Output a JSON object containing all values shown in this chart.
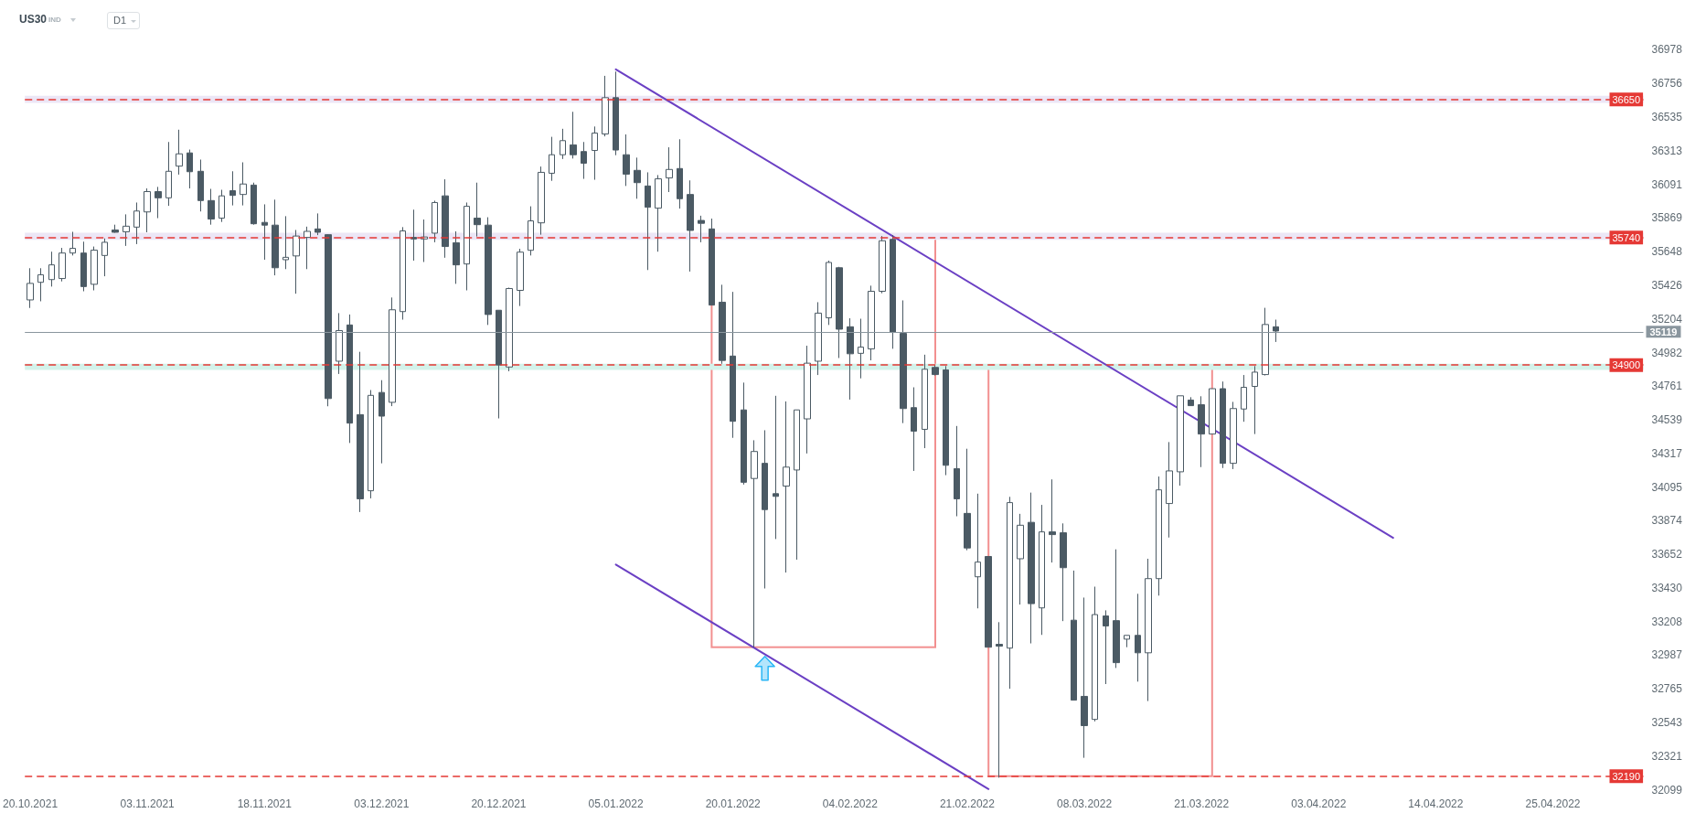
{
  "chart_data": {
    "type": "candlestick",
    "title": "US30",
    "subtitle": "IND",
    "annotations": [
      "D1"
    ],
    "categories": [
      "20.10.2021",
      null,
      null,
      null,
      null,
      null,
      null,
      null,
      null,
      null,
      null,
      "03.11.2021",
      null,
      null,
      null,
      null,
      null,
      null,
      null,
      null,
      null,
      null,
      "18.11.2021",
      null,
      null,
      null,
      null,
      null,
      null,
      null,
      null,
      null,
      null,
      "03.12.2021",
      null,
      null,
      null,
      null,
      null,
      null,
      null,
      null,
      null,
      null,
      "20.12.2021",
      null,
      null,
      null,
      null,
      null,
      null,
      null,
      null,
      null,
      null,
      "05.01.2022",
      null,
      null,
      null,
      null,
      null,
      null,
      null,
      null,
      null,
      null,
      "20.01.2022",
      null,
      null,
      null,
      null,
      null,
      null,
      null,
      null,
      null,
      null,
      "04.02.2022",
      null,
      null,
      null,
      null,
      null,
      null,
      null,
      null,
      null,
      null,
      "21.02.2022",
      null,
      null,
      null,
      null,
      null,
      null,
      null,
      null,
      null,
      null,
      "08.03.2022",
      null,
      null,
      null,
      null,
      null,
      null,
      null,
      null,
      null,
      null,
      "21.03.2022",
      null,
      null,
      null,
      null,
      null,
      null,
      null,
      null,
      null,
      null,
      "03.04.2022",
      null,
      null,
      null,
      null,
      null,
      null,
      null,
      null,
      null,
      null,
      "14.04.2022",
      null,
      null,
      null,
      null,
      null,
      null,
      null,
      null,
      null,
      null,
      "25.04.2022",
      null,
      null,
      null,
      null,
      null,
      null,
      null,
      null
    ],
    "ohlc": [
      [
        35329,
        35538,
        35276,
        35438
      ],
      [
        35445,
        35538,
        35320,
        35495
      ],
      [
        35463,
        35647,
        35417,
        35560
      ],
      [
        35470,
        35672,
        35451,
        35638
      ],
      [
        35638,
        35778,
        35622,
        35669
      ],
      [
        35638,
        35713,
        35386,
        35417
      ],
      [
        35432,
        35681,
        35392,
        35657
      ],
      [
        35622,
        35734,
        35485,
        35709
      ],
      [
        35790,
        35825,
        35772,
        35775
      ],
      [
        35778,
        35893,
        35685,
        35815
      ],
      [
        35809,
        35971,
        35697,
        35915
      ],
      [
        35909,
        36064,
        35775,
        36043
      ],
      [
        36043,
        36074,
        35868,
        36002
      ],
      [
        36002,
        36370,
        35949,
        36177
      ],
      [
        36211,
        36451,
        36155,
        36292
      ],
      [
        36298,
        36320,
        36064,
        36174
      ],
      [
        36177,
        36254,
        35912,
        35984
      ],
      [
        35984,
        36061,
        35825,
        35862
      ],
      [
        35868,
        36055,
        35843,
        36015
      ],
      [
        36049,
        36177,
        35952,
        36018
      ],
      [
        36024,
        36236,
        35952,
        36093
      ],
      [
        36086,
        36102,
        35825,
        35831
      ],
      [
        35840,
        35959,
        35594,
        35822
      ],
      [
        35822,
        35990,
        35491,
        35541
      ],
      [
        35594,
        35881,
        35532,
        35610
      ],
      [
        35619,
        35790,
        35370,
        35750
      ],
      [
        35741,
        35812,
        35532,
        35781
      ],
      [
        35797,
        35899,
        35756,
        35775
      ],
      [
        35759,
        35762,
        34628,
        34679
      ],
      [
        34925,
        35242,
        34841,
        35127
      ],
      [
        35164,
        35233,
        34386,
        34517
      ],
      [
        34573,
        34987,
        33931,
        34018
      ],
      [
        34071,
        34735,
        34021,
        34700
      ],
      [
        34719,
        34800,
        34252,
        34563
      ],
      [
        34654,
        35345,
        34629,
        35264
      ],
      [
        35252,
        35809,
        35199,
        35784
      ],
      [
        35741,
        35924,
        35588,
        35731
      ],
      [
        35731,
        35859,
        35579,
        35744
      ],
      [
        35769,
        35983,
        35709,
        35971
      ],
      [
        36015,
        36124,
        35607,
        35681
      ],
      [
        35706,
        35781,
        35435,
        35560
      ],
      [
        35566,
        35971,
        35392,
        35946
      ],
      [
        35868,
        36102,
        35747,
        35825
      ],
      [
        35822,
        35874,
        35164,
        35233
      ],
      [
        35261,
        35261,
        34548,
        34900
      ],
      [
        34887,
        35410,
        34859,
        35404
      ],
      [
        35392,
        35666,
        35289,
        35644
      ],
      [
        35656,
        35946,
        35622,
        35850
      ],
      [
        35837,
        36208,
        35759,
        36170
      ],
      [
        36164,
        36404,
        36114,
        36286
      ],
      [
        36286,
        36457,
        36258,
        36379
      ],
      [
        36351,
        36569,
        36261,
        36286
      ],
      [
        36307,
        36370,
        36127,
        36230
      ],
      [
        36314,
        36472,
        36121,
        36429
      ],
      [
        36423,
        36806,
        36407,
        36662
      ],
      [
        36662,
        36834,
        36283,
        36317
      ],
      [
        36286,
        36420,
        36080,
        36158
      ],
      [
        36183,
        36267,
        35996,
        36102
      ],
      [
        36080,
        36170,
        35526,
        35940
      ],
      [
        35934,
        36152,
        35647,
        36127
      ],
      [
        36133,
        36335,
        36040,
        36189
      ],
      [
        36195,
        36388,
        35931,
        35996
      ],
      [
        36024,
        36117,
        35516,
        35787
      ],
      [
        35853,
        35884,
        35709,
        35834
      ],
      [
        35797,
        35865,
        35295,
        35295
      ],
      [
        35314,
        35429,
        34908,
        34930
      ],
      [
        34959,
        35382,
        34420,
        34529
      ],
      [
        34604,
        34784,
        34112,
        34127
      ],
      [
        34152,
        34404,
        33040,
        34330
      ],
      [
        34252,
        34470,
        33427,
        33947
      ],
      [
        34052,
        34697,
        33753,
        34034
      ],
      [
        34102,
        34660,
        33532,
        34227
      ],
      [
        34208,
        34604,
        33617,
        34604
      ],
      [
        34545,
        35027,
        34317,
        34912
      ],
      [
        34925,
        35314,
        34834,
        35242
      ],
      [
        35211,
        35588,
        35164,
        35576
      ],
      [
        35541,
        35547,
        34946,
        35136
      ],
      [
        35152,
        35208,
        34672,
        34974
      ],
      [
        34977,
        35205,
        34812,
        35018
      ],
      [
        35006,
        35423,
        34931,
        35386
      ],
      [
        35386,
        35750,
        35373,
        35719
      ],
      [
        35728,
        35756,
        35007,
        35118
      ],
      [
        35108,
        35326,
        34517,
        34613
      ],
      [
        34619,
        34753,
        34202,
        34464
      ],
      [
        34476,
        34968,
        34352,
        34872
      ],
      [
        34884,
        34900,
        34831,
        34837
      ],
      [
        34868,
        34893,
        34174,
        34239
      ],
      [
        34217,
        34498,
        33903,
        34018
      ],
      [
        33922,
        34348,
        33679,
        33694
      ],
      [
        33504,
        34052,
        33296,
        33601
      ],
      [
        33638,
        33638,
        33040,
        33040
      ],
      [
        33059,
        33205,
        32180,
        33047
      ],
      [
        33034,
        34031,
        32766,
        33993
      ],
      [
        33623,
        33919,
        33321,
        33844
      ],
      [
        33863,
        34059,
        33065,
        33327
      ],
      [
        33299,
        33978,
        33121,
        33800
      ],
      [
        33800,
        34146,
        33598,
        33782
      ],
      [
        33794,
        33856,
        33212,
        33564
      ],
      [
        33218,
        33545,
        32691,
        32691
      ],
      [
        32716,
        33367,
        32311,
        32523
      ],
      [
        32564,
        33439,
        32551,
        33255
      ],
      [
        33246,
        33283,
        32797,
        33180
      ],
      [
        33215,
        33685,
        32903,
        32938
      ],
      [
        33093,
        33118,
        33040,
        33118
      ],
      [
        33118,
        33392,
        32813,
        33003
      ],
      [
        33003,
        33623,
        32685,
        33492
      ],
      [
        33492,
        34165,
        33380,
        34077
      ],
      [
        33987,
        34392,
        33763,
        34202
      ],
      [
        34196,
        34697,
        34105,
        34697
      ],
      [
        34669,
        34688,
        34632,
        34632
      ],
      [
        34638,
        34694,
        34227,
        34445
      ],
      [
        34445,
        34744,
        34445,
        34744
      ],
      [
        34744,
        34791,
        34221,
        34252
      ],
      [
        34252,
        34657,
        34214,
        34613
      ],
      [
        34610,
        34834,
        34526,
        34753
      ],
      [
        34759,
        34893,
        34445,
        34853
      ],
      [
        34837,
        35277,
        34831,
        35167
      ],
      [
        35152,
        35199,
        35052,
        35124
      ],
      null,
      null,
      null,
      null,
      null,
      null,
      null,
      null,
      null,
      null,
      null,
      null,
      null,
      null,
      null,
      null,
      null,
      null,
      null,
      null,
      null,
      null,
      null,
      null,
      null,
      null,
      null,
      null,
      null,
      null,
      null,
      null,
      null,
      null
    ],
    "color": "#4b5a64",
    "series": [
      {
        "type": "line",
        "color": "#6b40c4",
        "values": [
          null,
          null,
          null,
          null,
          null,
          null,
          null,
          null,
          null,
          null,
          null,
          null,
          null,
          null,
          null,
          null,
          null,
          null,
          null,
          null,
          null,
          null,
          null,
          null,
          null,
          null,
          null,
          null,
          null,
          null,
          null,
          null,
          null,
          null,
          null,
          null,
          null,
          null,
          null,
          null,
          null,
          null,
          null,
          null,
          null,
          null,
          null,
          null,
          null,
          null,
          null,
          null,
          null,
          null,
          null,
          36849,
          null,
          null,
          null,
          null,
          null,
          null,
          null,
          null,
          null,
          null,
          null,
          null,
          null,
          null,
          null,
          null,
          null,
          null,
          null,
          null,
          null,
          null,
          null,
          null,
          null,
          null,
          null,
          null,
          null,
          null,
          null,
          null,
          null,
          null,
          null,
          null,
          null,
          null,
          null,
          null,
          null,
          null,
          null,
          null,
          null,
          null,
          null,
          null,
          null,
          null,
          null,
          null,
          null,
          null,
          null,
          null,
          null,
          null,
          null,
          null,
          null,
          null,
          null,
          null,
          null,
          null,
          null,
          null,
          null,
          null,
          null,
          null,
          33761,
          null,
          null,
          null,
          null,
          null,
          null,
          null,
          null,
          null,
          null,
          null,
          null,
          null,
          null,
          null,
          null,
          null,
          null,
          null,
          null,
          null,
          null,
          null
        ]
      },
      {
        "type": "line",
        "color": "#6b40c4",
        "values": [
          null,
          null,
          null,
          null,
          null,
          null,
          null,
          null,
          null,
          null,
          null,
          null,
          null,
          null,
          null,
          null,
          null,
          null,
          null,
          null,
          null,
          null,
          null,
          null,
          null,
          null,
          null,
          null,
          null,
          null,
          null,
          null,
          null,
          null,
          null,
          null,
          null,
          null,
          null,
          null,
          null,
          null,
          null,
          null,
          null,
          null,
          null,
          null,
          null,
          null,
          null,
          null,
          null,
          null,
          null,
          33585,
          null,
          null,
          null,
          null,
          null,
          null,
          null,
          null,
          null,
          null,
          null,
          null,
          null,
          null,
          null,
          null,
          null,
          null,
          null,
          null,
          null,
          null,
          null,
          null,
          null,
          null,
          null,
          null,
          null,
          null,
          null,
          null,
          null,
          null,
          32105,
          null,
          null,
          null,
          null,
          null,
          null,
          null,
          null,
          null,
          null,
          null,
          null,
          null,
          null,
          null,
          null,
          null,
          null,
          null,
          null,
          null,
          null,
          null,
          null,
          null,
          null,
          null,
          null,
          null,
          null,
          null,
          null,
          null,
          null,
          null,
          null,
          null,
          null,
          null,
          null,
          null,
          null,
          null,
          null,
          null,
          null,
          null,
          null,
          null,
          null,
          null,
          null,
          null,
          null,
          null,
          null,
          null,
          null,
          null,
          null,
          null
        ]
      }
    ],
    "marker": "none",
    "ylim": [
      32099,
      36978
    ],
    "yticks": [
      32099,
      32321,
      32543,
      32765,
      32987,
      33208,
      33430,
      33652,
      33874,
      34095,
      34317,
      34539,
      34761,
      34982,
      35204,
      35426,
      35648,
      35869,
      36091,
      36313,
      36535,
      36756,
      36978
    ],
    "ref_lines": [
      {
        "axis": "y",
        "value": 36650,
        "label": "36650",
        "color": "#e53935",
        "line_style": "dashed"
      },
      {
        "axis": "y",
        "value": 35740,
        "label": "35740",
        "color": "#e53935",
        "line_style": "dashed"
      },
      {
        "axis": "y",
        "value": 34900,
        "label": "34900",
        "color": "#e53935",
        "line_style": "dashed"
      },
      {
        "axis": "y",
        "value": 32190,
        "label": "32190",
        "color": "#e53935",
        "line_style": "dashed"
      },
      {
        "axis": "y",
        "value": 35119,
        "label": "35119",
        "color": "#8a969e",
        "line_style": "solid"
      }
    ],
    "bands": [
      {
        "axis": "y",
        "from": 36628,
        "to": 36675,
        "color": "#ece6f6"
      },
      {
        "axis": "y",
        "from": 35725,
        "to": 35772,
        "color": "#ece6f6"
      },
      {
        "axis": "y",
        "from": 34868,
        "to": 34909,
        "color": "#d3f2ea"
      }
    ]
  }
}
